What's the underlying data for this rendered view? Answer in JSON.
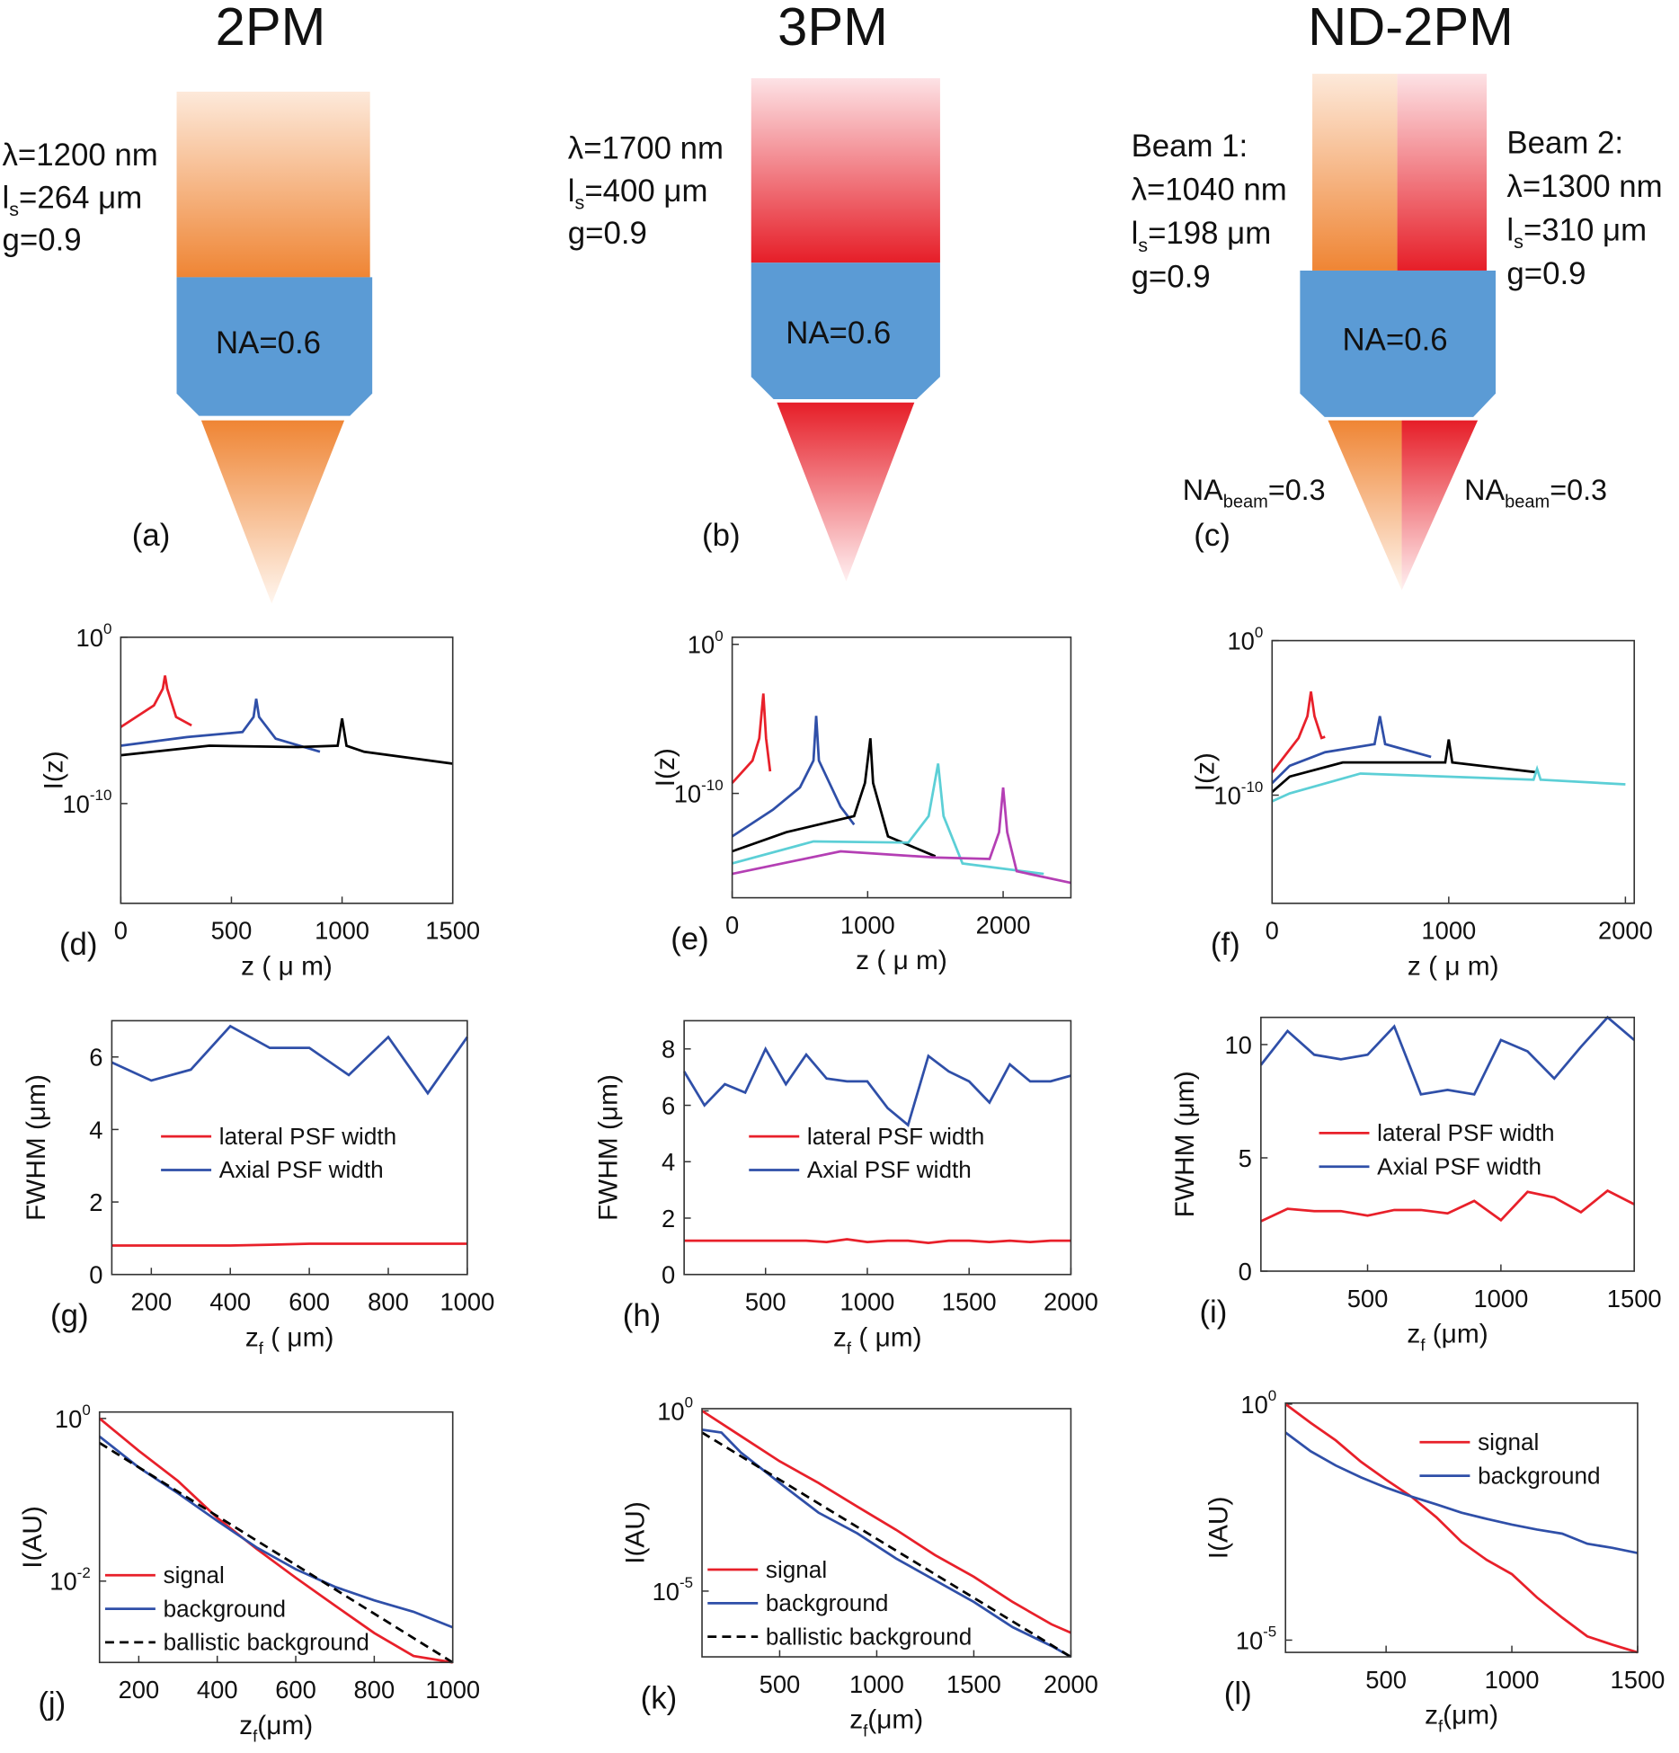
{
  "panels": [
    {
      "title": "2PM",
      "params": [
        "λ=1200 nm",
        {
          "main": "l",
          "sub": "s",
          "tail": "=264 μm"
        },
        "g=0.9"
      ],
      "objective": "NA=0.6",
      "label": "(a)"
    },
    {
      "title": "3PM",
      "params": [
        "λ=1700 nm",
        {
          "main": "l",
          "sub": "s",
          "tail": "=400 μm"
        },
        "g=0.9"
      ],
      "objective": "NA=0.6",
      "label": "(b)"
    },
    {
      "title": "ND-2PM",
      "beams": [
        {
          "name": "Beam 1:",
          "params": [
            "λ=1040 nm",
            {
              "main": "l",
              "sub": "s",
              "tail": "=198 μm"
            },
            "g=0.9"
          ],
          "na": {
            "main": "NA",
            "sub": "beam",
            "tail": "=0.3"
          }
        },
        {
          "name": "Beam 2:",
          "params": [
            "λ=1300 nm",
            {
              "main": "l",
              "sub": "s",
              "tail": "=310 μm"
            },
            "g=0.9"
          ],
          "na": {
            "main": "NA",
            "sub": "beam",
            "tail": "=0.3"
          }
        }
      ],
      "objective": "NA=0.6",
      "label": "(c)"
    }
  ],
  "chart_data": [
    {
      "type": "line",
      "panel_label": "(d)",
      "xlabel": "z ( μ m)",
      "ylabel": "I(z)",
      "ylog": true,
      "xlim": [
        0,
        1500
      ],
      "xticks": [
        0,
        500,
        1000,
        1500
      ],
      "ylim": [
        1e-16,
        1
      ],
      "yticks": [
        {
          "value": 1,
          "label": "10",
          "exp": "0"
        },
        {
          "value": 1e-10,
          "label": "10",
          "exp": "-10"
        }
      ],
      "series": [
        {
          "color": "#e8202a",
          "x": [
            0,
            150,
            190,
            200,
            210,
            250,
            320
          ],
          "values": [
            4e-06,
            8e-05,
            0.0008,
            0.005,
            0.0008,
            1.6e-05,
            5e-06
          ]
        },
        {
          "color": "#2f4fa8",
          "x": [
            0,
            300,
            550,
            600,
            612,
            625,
            700,
            900
          ],
          "values": [
            3e-07,
            1e-06,
            2e-06,
            1.6e-05,
            0.0002,
            1.6e-05,
            8e-07,
            1.3e-07
          ]
        },
        {
          "color": "#000000",
          "x": [
            0,
            400,
            800,
            980,
            1000,
            1020,
            1100,
            1500
          ],
          "values": [
            8e-08,
            3e-07,
            2.5e-07,
            3e-07,
            1.3e-05,
            3e-07,
            1.3e-07,
            2.5e-08
          ]
        }
      ]
    },
    {
      "type": "line",
      "panel_label": "(e)",
      "xlabel": "z ( μ m)",
      "ylabel": "I(z)",
      "ylog": true,
      "xlim": [
        0,
        2500
      ],
      "xticks": [
        0,
        1000,
        2000
      ],
      "ylim": [
        1e-17,
        3
      ],
      "yticks": [
        {
          "value": 1,
          "label": "10",
          "exp": "0"
        },
        {
          "value": 1e-10,
          "label": "10",
          "exp": "-10"
        }
      ],
      "series": [
        {
          "color": "#e8202a",
          "x": [
            0,
            150,
            200,
            230,
            250,
            280
          ],
          "values": [
            5e-10,
            1.6e-08,
            5e-07,
            0.0005,
            5e-07,
            3e-09
          ]
        },
        {
          "color": "#2f4fa8",
          "x": [
            0,
            300,
            500,
            600,
            620,
            640,
            800,
            900
          ],
          "values": [
            1.3e-13,
            8e-12,
            2.5e-10,
            1.6e-08,
            1.6e-05,
            1.6e-08,
            1.3e-11,
            8e-13
          ]
        },
        {
          "color": "#000000",
          "x": [
            0,
            400,
            900,
            980,
            1020,
            1040,
            1150,
            1500
          ],
          "values": [
            1.3e-14,
            2.5e-13,
            3e-12,
            5e-10,
            5e-07,
            5e-10,
            1.3e-13,
            6e-15
          ]
        },
        {
          "color": "#5ccfd6",
          "x": [
            0,
            600,
            1300,
            1450,
            1520,
            1560,
            1700,
            2300
          ],
          "values": [
            2e-15,
            6e-14,
            5e-14,
            3e-12,
            1e-08,
            3e-12,
            2e-15,
            4e-16
          ]
        },
        {
          "color": "#b43fb4",
          "x": [
            0,
            800,
            1500,
            1900,
            1970,
            2000,
            2030,
            2100,
            2500
          ],
          "values": [
            4e-16,
            1.3e-14,
            5e-15,
            4e-15,
            2.5e-13,
            2.5e-10,
            2.5e-13,
            6e-16,
            1e-16
          ]
        }
      ]
    },
    {
      "type": "line",
      "panel_label": "(f)",
      "xlabel": "z ( μ m)",
      "ylabel": "I(z)",
      "ylog": true,
      "xlim": [
        0,
        2050
      ],
      "xticks": [
        0,
        1000,
        2000
      ],
      "ylim": [
        1e-17,
        1
      ],
      "yticks": [
        {
          "value": 1,
          "label": "10",
          "exp": "0"
        },
        {
          "value": 1e-10,
          "label": "10",
          "exp": "-10"
        }
      ],
      "series": [
        {
          "color": "#e8202a",
          "x": [
            0,
            150,
            200,
            220,
            240,
            280,
            300
          ],
          "values": [
            3e-09,
            5e-07,
            1.3e-05,
            0.0005,
            1.3e-05,
            5e-07,
            6e-07
          ]
        },
        {
          "color": "#2f4fa8",
          "x": [
            0,
            100,
            300,
            580,
            610,
            640,
            900
          ],
          "values": [
            6e-10,
            8e-09,
            6e-08,
            2e-07,
            1.3e-05,
            2e-07,
            3e-08
          ]
        },
        {
          "color": "#000000",
          "x": [
            0,
            100,
            400,
            980,
            1000,
            1020,
            1500
          ],
          "values": [
            1.6e-10,
            1.6e-09,
            1.3e-08,
            1.3e-08,
            4e-07,
            1.3e-08,
            3e-09
          ]
        },
        {
          "color": "#5ccfd6",
          "x": [
            0,
            100,
            500,
            1480,
            1500,
            1520,
            2000
          ],
          "values": [
            4e-11,
            1.3e-10,
            2.5e-09,
            1e-09,
            5e-09,
            1e-09,
            5e-10
          ]
        }
      ]
    },
    {
      "type": "line",
      "panel_label": "(g)",
      "xlabel": {
        "main": "z",
        "sub": "f",
        "tail": " ( μm)"
      },
      "ylabel": "FWHM (μm)",
      "xlim": [
        100,
        1000
      ],
      "xticks": [
        200,
        400,
        600,
        800,
        1000
      ],
      "ylim": [
        0,
        7
      ],
      "yticks": [
        0,
        2,
        4,
        6
      ],
      "legend": "center",
      "series": [
        {
          "name": "lateral PSF width",
          "color": "#e8202a",
          "x": [
            100,
            200,
            300,
            400,
            500,
            600,
            700,
            800,
            900,
            1000
          ],
          "values": [
            0.8,
            0.8,
            0.8,
            0.8,
            0.82,
            0.85,
            0.85,
            0.85,
            0.85,
            0.85
          ]
        },
        {
          "name": "Axial PSF width",
          "color": "#2f4fa8",
          "x": [
            100,
            200,
            300,
            400,
            500,
            600,
            700,
            800,
            900,
            1000
          ],
          "values": [
            5.85,
            5.35,
            5.65,
            6.85,
            6.25,
            6.25,
            5.5,
            6.55,
            5.0,
            6.55
          ]
        }
      ]
    },
    {
      "type": "line",
      "panel_label": "(h)",
      "xlabel": {
        "main": "z",
        "sub": "f",
        "tail": " ( μm)"
      },
      "ylabel": "FWHM (μm)",
      "xlim": [
        100,
        2000
      ],
      "xticks": [
        500,
        1000,
        1500,
        2000
      ],
      "ylim": [
        0,
        9
      ],
      "yticks": [
        0,
        2,
        4,
        6,
        8
      ],
      "legend": "center",
      "series": [
        {
          "name": "lateral PSF width",
          "color": "#e8202a",
          "x": [
            100,
            200,
            300,
            400,
            500,
            600,
            700,
            800,
            900,
            1000,
            1100,
            1200,
            1300,
            1400,
            1500,
            1600,
            1700,
            1800,
            1900,
            2000
          ],
          "values": [
            1.2,
            1.2,
            1.2,
            1.2,
            1.2,
            1.2,
            1.2,
            1.15,
            1.25,
            1.15,
            1.2,
            1.2,
            1.12,
            1.2,
            1.2,
            1.15,
            1.2,
            1.15,
            1.2,
            1.2
          ]
        },
        {
          "name": "Axial PSF width",
          "color": "#2f4fa8",
          "x": [
            100,
            200,
            300,
            400,
            500,
            600,
            700,
            800,
            900,
            1000,
            1100,
            1200,
            1300,
            1400,
            1500,
            1600,
            1700,
            1800,
            1900,
            2000
          ],
          "values": [
            7.2,
            6.0,
            6.75,
            6.45,
            8.0,
            6.75,
            7.8,
            6.95,
            6.85,
            6.85,
            5.9,
            5.3,
            7.75,
            7.2,
            6.85,
            6.1,
            7.45,
            6.85,
            6.85,
            7.05
          ]
        }
      ]
    },
    {
      "type": "line",
      "panel_label": "(i)",
      "xlabel": {
        "main": "z",
        "sub": "f",
        "tail": " (μm)"
      },
      "ylabel": "FWHM (μm)",
      "xlim": [
        100,
        1500
      ],
      "xticks": [
        500,
        1000,
        1500
      ],
      "ylim": [
        0,
        11.2
      ],
      "yticks": [
        0,
        5,
        10
      ],
      "legend": "center",
      "series": [
        {
          "name": "lateral PSF width",
          "color": "#e8202a",
          "x": [
            100,
            200,
            300,
            400,
            500,
            600,
            700,
            800,
            900,
            1000,
            1100,
            1200,
            1300,
            1400,
            1500
          ],
          "values": [
            2.2,
            2.75,
            2.65,
            2.65,
            2.45,
            2.7,
            2.7,
            2.55,
            3.1,
            2.25,
            3.5,
            3.25,
            2.6,
            3.55,
            2.95
          ]
        },
        {
          "name": "Axial PSF width",
          "color": "#2f4fa8",
          "x": [
            100,
            200,
            300,
            400,
            500,
            600,
            700,
            800,
            900,
            1000,
            1100,
            1200,
            1300,
            1400,
            1500
          ],
          "values": [
            9.1,
            10.6,
            9.55,
            9.35,
            9.55,
            10.8,
            7.8,
            8.0,
            7.8,
            10.2,
            9.7,
            8.5,
            9.9,
            11.2,
            10.2
          ]
        }
      ]
    },
    {
      "type": "line",
      "panel_label": "(j)",
      "xlabel": {
        "main": "z",
        "sub": "f",
        "tail": "(μm)"
      },
      "ylabel": "I(AU)",
      "ylog": true,
      "xlim": [
        100,
        1000
      ],
      "xticks": [
        200,
        400,
        600,
        800,
        1000
      ],
      "ylim": [
        0.001,
        1.2
      ],
      "yticks": [
        {
          "value": 1,
          "label": "10",
          "exp": "0"
        },
        {
          "value": 0.01,
          "label": "10",
          "exp": "-2"
        }
      ],
      "legend": "lower left",
      "series": [
        {
          "name": "signal",
          "color": "#e8202a",
          "x": [
            100,
            200,
            300,
            400,
            500,
            600,
            700,
            800,
            900,
            1000
          ],
          "values": [
            1.0,
            0.4,
            0.17,
            0.06,
            0.025,
            0.011,
            0.005,
            0.0023,
            0.0012,
            0.001
          ]
        },
        {
          "name": "background",
          "color": "#2f4fa8",
          "x": [
            100,
            200,
            300,
            400,
            500,
            600,
            700,
            800,
            900,
            1000
          ],
          "values": [
            0.6,
            0.25,
            0.12,
            0.055,
            0.026,
            0.014,
            0.0085,
            0.0058,
            0.0042,
            0.0027
          ]
        },
        {
          "name": "ballistic background",
          "color": "#000000",
          "linestyle": "dashed",
          "x": [
            100,
            1000
          ],
          "values": [
            0.5,
            0.001
          ]
        }
      ]
    },
    {
      "type": "line",
      "panel_label": "(k)",
      "xlabel": {
        "main": "z",
        "sub": "f",
        "tail": "(μm)"
      },
      "ylabel": "I(AU)",
      "ylog": true,
      "xlim": [
        100,
        2000
      ],
      "xticks": [
        500,
        1000,
        1500,
        2000
      ],
      "ylim": [
        1.5e-07,
        1.15
      ],
      "yticks": [
        {
          "value": 1,
          "label": "10",
          "exp": "0"
        },
        {
          "value": 1e-05,
          "label": "10",
          "exp": "-5"
        }
      ],
      "legend": "lower left",
      "series": [
        {
          "name": "signal",
          "color": "#e8202a",
          "x": [
            100,
            300,
            500,
            700,
            900,
            1100,
            1300,
            1500,
            1700,
            1900,
            2000
          ],
          "values": [
            1,
            0.2,
            0.04,
            0.01,
            0.0022,
            0.0005,
            0.0001,
            2.5e-05,
            5e-06,
            1.2e-06,
            7e-07
          ]
        },
        {
          "name": "background",
          "color": "#2f4fa8",
          "x": [
            100,
            200,
            300,
            500,
            700,
            900,
            1100,
            1300,
            1500,
            1700,
            1900,
            2000
          ],
          "values": [
            0.3,
            0.25,
            0.07,
            0.01,
            0.0015,
            0.0004,
            8e-05,
            2e-05,
            5e-06,
            1e-06,
            3e-07,
            1.5e-07
          ]
        },
        {
          "name": "ballistic background",
          "color": "#000000",
          "linestyle": "dashed",
          "x": [
            100,
            2000
          ],
          "values": [
            0.25,
            1.5e-07
          ]
        }
      ]
    },
    {
      "type": "line",
      "panel_label": "(l)",
      "xlabel": {
        "main": "z",
        "sub": "f",
        "tail": "(μm)"
      },
      "ylabel": "I(AU)",
      "ylog": true,
      "xlim": [
        100,
        1500
      ],
      "xticks": [
        500,
        1000,
        1500
      ],
      "ylim": [
        5.5e-06,
        1.05
      ],
      "yticks": [
        {
          "value": 1,
          "label": "10",
          "exp": "0"
        },
        {
          "value": 1e-05,
          "label": "10",
          "exp": "-5"
        }
      ],
      "legend": "upper right",
      "series": [
        {
          "name": "signal",
          "color": "#e8202a",
          "x": [
            100,
            200,
            300,
            400,
            500,
            600,
            700,
            800,
            900,
            1000,
            1100,
            1200,
            1300,
            1400,
            1500
          ],
          "values": [
            1,
            0.4,
            0.17,
            0.06,
            0.025,
            0.011,
            0.004,
            0.0012,
            0.0005,
            0.00025,
            8e-05,
            3e-05,
            1.2e-05,
            8e-06,
            5.5e-06
          ]
        },
        {
          "name": "background",
          "color": "#2f4fa8",
          "x": [
            100,
            200,
            300,
            400,
            500,
            600,
            700,
            800,
            900,
            1000,
            1100,
            1200,
            1300,
            1400,
            1500
          ],
          "values": [
            0.25,
            0.1,
            0.05,
            0.028,
            0.017,
            0.011,
            0.0075,
            0.005,
            0.0037,
            0.0028,
            0.0022,
            0.0018,
            0.0011,
            0.0009,
            0.0007
          ]
        }
      ]
    }
  ]
}
